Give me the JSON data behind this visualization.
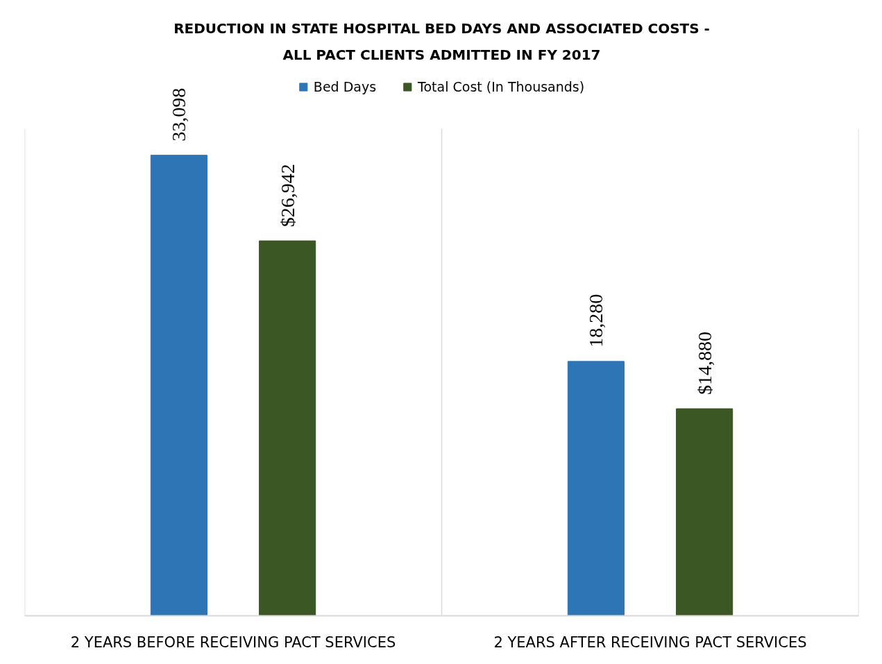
{
  "chart_data": {
    "type": "bar",
    "title": "REDUCTION IN STATE HOSPITAL BED DAYS AND ASSOCIATED COSTS - ALL PACT CLIENTS ADMITTED IN FY 2017",
    "categories": [
      "2 YEARS BEFORE RECEIVING PACT SERVICES",
      "2 YEARS AFTER RECEIVING PACT SERVICES"
    ],
    "series": [
      {
        "name": "Bed Days",
        "color": "#2e75b6",
        "values": [
          33098,
          18280
        ],
        "value_labels": [
          "33,098",
          "18,280"
        ]
      },
      {
        "name": "Total Cost (In Thousands)",
        "color": "#3a5724",
        "values": [
          26942,
          14880
        ],
        "value_labels": [
          "$26,942",
          "$14,880"
        ]
      }
    ],
    "ylim": [
      0,
      35000
    ],
    "grid": "x",
    "legend": "top",
    "tick_labels": "x"
  }
}
